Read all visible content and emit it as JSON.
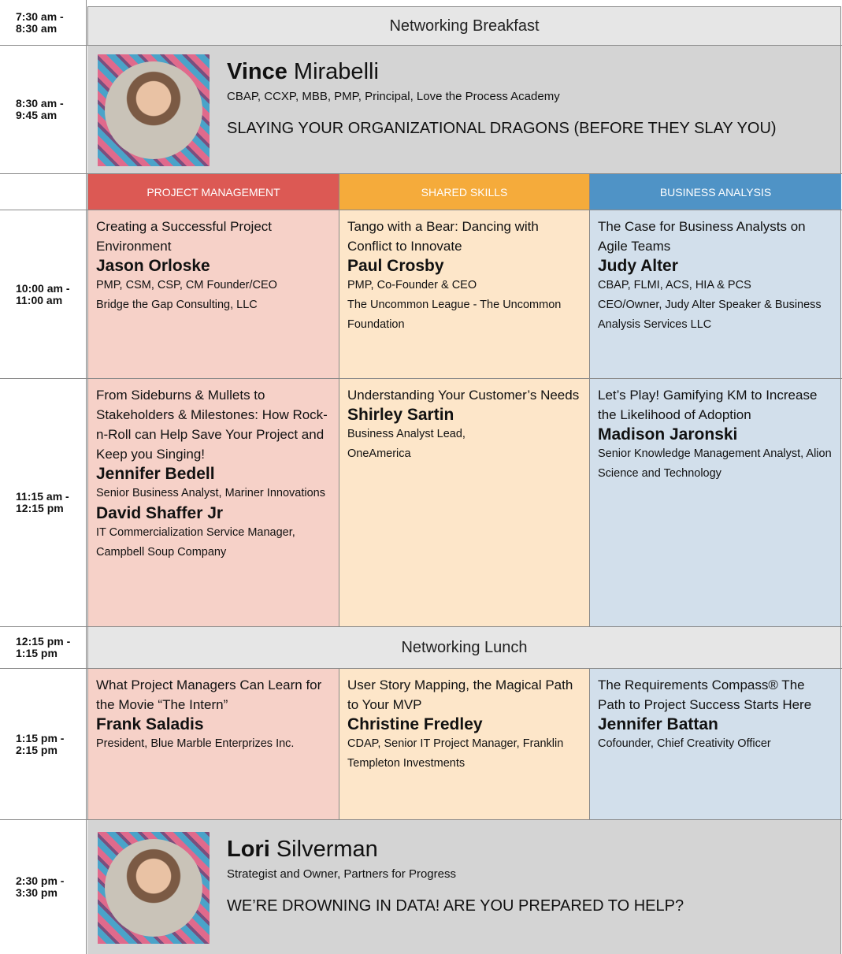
{
  "rows": [
    {
      "time": "7:30 am -\n8:30 am",
      "event": "Networking Breakfast"
    },
    {
      "time": "8:30 am -\n9:45 am",
      "keynote": {
        "first_name": "Vince",
        "last_name": "Mirabelli",
        "credentials": "CBAP, CCXP, MBB, PMP, Principal, Love the Process Academy",
        "talk": "SLAYING YOUR ORGANIZATIONAL DRAGONS (BEFORE THEY SLAY YOU)"
      }
    },
    {
      "tracks": [
        "PROJECT MANAGEMENT",
        "SHARED SKILLS",
        "BUSINESS ANALYSIS"
      ]
    },
    {
      "time": "10:00 am -\n11:00 am",
      "sessions": [
        {
          "title": "Creating a Successful Project Environment",
          "speakers": [
            {
              "name": "Jason Orloske",
              "details": "PMP, CSM, CSP, CM Founder/CEO\nBridge the Gap Consulting, LLC"
            }
          ]
        },
        {
          "title": "Tango with a Bear: Dancing with Conflict to Innovate",
          "speakers": [
            {
              "name": "Paul Crosby",
              "details": "PMP, Co-Founder & CEO\nThe Uncommon League - The Uncommon Foundation"
            }
          ]
        },
        {
          "title": "The Case for Business Analysts on Agile Teams",
          "speakers": [
            {
              "name": "Judy Alter",
              "details": "CBAP, FLMI, ACS, HIA & PCS\nCEO/Owner, Judy Alter Speaker & Business Analysis Services LLC"
            }
          ]
        }
      ]
    },
    {
      "time": "11:15 am -\n12:15 pm",
      "sessions": [
        {
          "title": "From Sideburns & Mullets to Stakeholders & Milestones: How Rock-n-Roll can Help Save Your Project and Keep you Singing!",
          "speakers": [
            {
              "name": "Jennifer Bedell",
              "details": "Senior Business Analyst, Mariner Innovations"
            },
            {
              "name": "David Shaffer Jr",
              "details": "IT Commercialization Service Manager, Campbell Soup Company"
            }
          ]
        },
        {
          "title": "Understanding Your Customer’s Needs",
          "speakers": [
            {
              "name": "Shirley Sartin",
              "details": "Business Analyst Lead,\nOneAmerica"
            }
          ]
        },
        {
          "title": "Let’s Play! Gamifying KM to Increase the Likelihood of Adoption",
          "speakers": [
            {
              "name": "Madison Jaronski",
              "details": "Senior Knowledge Management Analyst, Alion Science and Technology"
            }
          ]
        }
      ]
    },
    {
      "time": "12:15 pm -\n1:15 pm",
      "event": "Networking Lunch"
    },
    {
      "time": "1:15 pm -\n2:15 pm",
      "sessions": [
        {
          "title": "What Project Managers Can Learn for the Movie “The Intern”",
          "speakers": [
            {
              "name": "Frank Saladis",
              "details": "President, Blue Marble Enterprizes Inc."
            }
          ]
        },
        {
          "title": "User Story Mapping, the Magical Path to Your MVP",
          "speakers": [
            {
              "name": "Christine Fredley",
              "details": "CDAP, Senior IT Project Manager, Franklin Templeton Investments"
            }
          ]
        },
        {
          "title": "The Requirements Compass® The Path to Project Success Starts Here",
          "speakers": [
            {
              "name": "Jennifer Battan",
              "details": "Cofounder, Chief Creativity Officer"
            }
          ]
        }
      ]
    },
    {
      "time": "2:30 pm -\n3:30 pm",
      "keynote": {
        "first_name": "Lori",
        "last_name": "Silverman",
        "credentials": "Strategist and Owner, Partners for Progress",
        "talk": "WE’RE DROWNING IN DATA! ARE YOU PREPARED TO HELP?"
      }
    }
  ]
}
